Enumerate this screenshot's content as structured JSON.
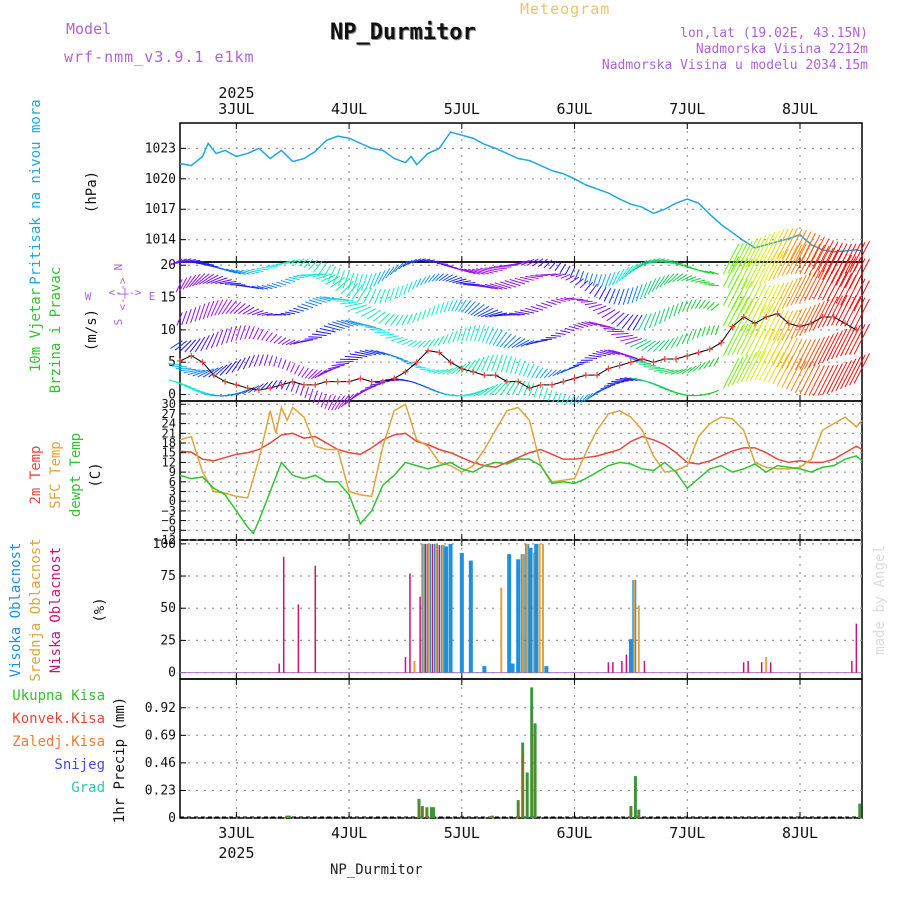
{
  "header": {
    "model_label": "Model",
    "model_name": "wrf-nmm_v3.9.1 e1km",
    "title": "NP_Durmitor",
    "meteogram_label": "Meteogram",
    "lonlat": "lon,lat (19.02E, 43.15N)",
    "altitude": "Nadmorska Visina 2212m",
    "model_altitude": "Nadmorska Visina u modelu 2034.15m"
  },
  "footer_label": "NP_Durmitor",
  "watermark": "made by Angel",
  "colors": {
    "pressure": "#1ea7e0",
    "t2m": "#e8463c",
    "sfc": "#e0a43a",
    "dew": "#2ec42e",
    "wind_obs": "#e8463c",
    "high_cloud": "#1f8fe0",
    "mid_cloud": "#e0a43a",
    "low_cloud": "#c8147a",
    "precip": "#3a9a3a",
    "precip_conv": "#8b6a1e",
    "label_purple": "#b062d8"
  },
  "chart_data": [
    {
      "type": "line",
      "name": "pressure",
      "title_lines": [
        "Pritisak na nivou mora",
        "(hPa)"
      ],
      "xlim": [
        2.5,
        8.55
      ],
      "ylim": [
        1011.8,
        1025.5
      ],
      "yticks": [
        1014,
        1017,
        1020,
        1023
      ],
      "year_label": "2025",
      "xtick_labels": [
        "3JUL",
        "4JUL",
        "5JUL",
        "6JUL",
        "7JUL",
        "8JUL"
      ],
      "xtick_values": [
        3,
        4,
        5,
        6,
        7,
        8
      ],
      "series": [
        {
          "color_key": "pressure",
          "x": [
            2.5,
            2.6,
            2.7,
            2.75,
            2.82,
            2.9,
            3.0,
            3.1,
            3.2,
            3.3,
            3.4,
            3.5,
            3.6,
            3.7,
            3.8,
            3.9,
            4.0,
            4.1,
            4.2,
            4.3,
            4.4,
            4.5,
            4.55,
            4.6,
            4.7,
            4.8,
            4.9,
            5.0,
            5.1,
            5.2,
            5.3,
            5.4,
            5.5,
            5.6,
            5.7,
            5.8,
            5.9,
            6.0,
            6.1,
            6.2,
            6.3,
            6.4,
            6.5,
            6.6,
            6.7,
            6.8,
            6.9,
            7.0,
            7.1,
            7.2,
            7.3,
            7.4,
            7.5,
            7.6,
            7.7,
            7.8,
            7.9,
            8.0,
            8.1,
            8.2,
            8.3,
            8.4,
            8.5,
            8.55
          ],
          "y": [
            1021.5,
            1021.3,
            1022.2,
            1023.5,
            1022.5,
            1022.8,
            1022.2,
            1022.5,
            1023.0,
            1022.0,
            1022.8,
            1021.7,
            1022.0,
            1022.7,
            1023.8,
            1024.2,
            1024.0,
            1023.5,
            1023.0,
            1022.8,
            1022.0,
            1021.6,
            1022.2,
            1021.4,
            1022.5,
            1023.0,
            1024.6,
            1024.3,
            1024.0,
            1023.4,
            1023.0,
            1022.5,
            1022.0,
            1021.8,
            1021.3,
            1020.8,
            1020.5,
            1020.0,
            1019.4,
            1019.0,
            1018.6,
            1018.0,
            1017.5,
            1017.2,
            1016.6,
            1017.0,
            1017.6,
            1018.0,
            1017.6,
            1016.5,
            1015.5,
            1014.7,
            1013.9,
            1013.2,
            1013.5,
            1013.8,
            1014.1,
            1014.5,
            1013.5,
            1013.0,
            1012.8,
            1012.9,
            1013.0,
            1012.9
          ]
        }
      ]
    },
    {
      "type": "scatter",
      "name": "wind",
      "title_lines": [
        "10m Vjetar",
        "Brzina i Pravac",
        "(m/s)"
      ],
      "ylim": [
        -1,
        20.5
      ],
      "yticks": [
        0,
        5,
        10,
        15,
        20
      ],
      "compass": {
        "w": "W",
        "e": "E",
        "n": "N",
        "s": "S",
        "arrow": "<-|->"
      },
      "speed_series": {
        "color_key": "wind_obs",
        "x": [
          2.5,
          2.6,
          2.7,
          2.8,
          2.9,
          3.0,
          3.1,
          3.2,
          3.3,
          3.4,
          3.5,
          3.6,
          3.7,
          3.8,
          3.9,
          4.0,
          4.1,
          4.2,
          4.3,
          4.4,
          4.5,
          4.6,
          4.7,
          4.8,
          4.9,
          5.0,
          5.1,
          5.2,
          5.3,
          5.4,
          5.5,
          5.6,
          5.7,
          5.8,
          5.9,
          6.0,
          6.1,
          6.2,
          6.3,
          6.4,
          6.5,
          6.6,
          6.7,
          6.8,
          6.9,
          7.0,
          7.1,
          7.2,
          7.3,
          7.4,
          7.5,
          7.6,
          7.7,
          7.8,
          7.9,
          8.0,
          8.1,
          8.2,
          8.3,
          8.4,
          8.5
        ],
        "y": [
          5.2,
          6.0,
          5.0,
          3.0,
          2.0,
          1.5,
          1.0,
          0.7,
          1.0,
          1.5,
          2.0,
          1.5,
          1.5,
          2.0,
          2.0,
          2.0,
          2.5,
          2.0,
          2.0,
          2.5,
          3.5,
          5.0,
          6.8,
          6.5,
          5.0,
          4.0,
          3.5,
          3.0,
          3.0,
          2.0,
          2.0,
          1.0,
          1.5,
          1.5,
          2.0,
          2.5,
          3.0,
          3.0,
          4.0,
          4.5,
          5.0,
          5.5,
          5.0,
          5.5,
          5.5,
          6.0,
          6.5,
          7.0,
          8.0,
          10.5,
          12.0,
          11.0,
          12.0,
          12.5,
          11.0,
          10.5,
          11.0,
          12.0,
          12.0,
          11.0,
          10.0
        ]
      }
    },
    {
      "type": "line",
      "name": "temperature",
      "title_lines": [
        "2m Temp",
        "SFC Temp",
        "dewpt Temp",
        "(C)"
      ],
      "ylim": [
        -12,
        31
      ],
      "yticks": [
        -12,
        -9,
        -6,
        -3,
        0,
        3,
        6,
        9,
        12,
        15,
        18,
        21,
        24,
        27,
        30
      ],
      "series": [
        {
          "name": "2m Temp",
          "color_key": "t2m",
          "x": [
            2.5,
            2.6,
            2.7,
            2.8,
            2.9,
            3.0,
            3.1,
            3.2,
            3.3,
            3.4,
            3.5,
            3.6,
            3.7,
            3.8,
            3.9,
            4.0,
            4.1,
            4.2,
            4.3,
            4.4,
            4.5,
            4.6,
            4.7,
            4.8,
            4.9,
            5.0,
            5.1,
            5.2,
            5.3,
            5.4,
            5.5,
            5.6,
            5.7,
            5.8,
            5.9,
            6.0,
            6.1,
            6.2,
            6.3,
            6.4,
            6.5,
            6.6,
            6.7,
            6.8,
            6.9,
            7.0,
            7.1,
            7.2,
            7.3,
            7.4,
            7.5,
            7.6,
            7.7,
            7.8,
            7.9,
            8.0,
            8.1,
            8.2,
            8.3,
            8.4,
            8.5,
            8.55
          ],
          "y": [
            15.5,
            15.2,
            13.0,
            12.5,
            13.5,
            14.5,
            15.0,
            16.0,
            18.0,
            20.5,
            21.0,
            19.5,
            20.0,
            18.0,
            16.0,
            15.0,
            14.5,
            16.5,
            19.0,
            20.5,
            21.0,
            18.5,
            17.5,
            16.0,
            15.0,
            13.5,
            12.0,
            11.0,
            10.5,
            12.0,
            13.5,
            15.0,
            16.0,
            14.5,
            13.0,
            13.0,
            13.5,
            14.0,
            15.0,
            16.0,
            18.5,
            20.0,
            19.0,
            17.5,
            15.0,
            12.0,
            11.5,
            12.5,
            14.0,
            15.5,
            16.5,
            16.5,
            15.0,
            13.0,
            12.0,
            12.5,
            12.0,
            12.0,
            13.0,
            15.0,
            17.0,
            16.0
          ]
        },
        {
          "name": "SFC Temp",
          "color_key": "sfc",
          "x": [
            2.5,
            2.6,
            2.7,
            2.8,
            2.9,
            3.0,
            3.1,
            3.2,
            3.3,
            3.35,
            3.4,
            3.45,
            3.5,
            3.6,
            3.7,
            3.8,
            3.9,
            4.0,
            4.1,
            4.2,
            4.3,
            4.4,
            4.5,
            4.6,
            4.7,
            4.8,
            4.9,
            5.0,
            5.1,
            5.2,
            5.3,
            5.4,
            5.5,
            5.6,
            5.7,
            5.8,
            5.9,
            6.0,
            6.1,
            6.2,
            6.3,
            6.4,
            6.5,
            6.6,
            6.7,
            6.8,
            6.9,
            7.0,
            7.1,
            7.2,
            7.3,
            7.4,
            7.5,
            7.6,
            7.7,
            7.8,
            7.9,
            8.0,
            8.1,
            8.2,
            8.3,
            8.4,
            8.5,
            8.55
          ],
          "y": [
            19.0,
            20.0,
            9.0,
            3.0,
            2.5,
            1.5,
            1.0,
            13.0,
            28.0,
            21.0,
            29.0,
            25.0,
            29.0,
            26.0,
            17.0,
            16.0,
            16.0,
            3.0,
            2.0,
            1.5,
            17.0,
            28.0,
            30.0,
            19.0,
            17.0,
            12.0,
            11.0,
            9.0,
            11.0,
            16.0,
            22.0,
            28.0,
            29.0,
            25.0,
            11.0,
            6.0,
            6.5,
            7.0,
            15.0,
            22.0,
            27.0,
            28.0,
            26.0,
            22.0,
            14.0,
            9.0,
            9.5,
            11.0,
            20.0,
            24.0,
            26.0,
            25.5,
            22.0,
            12.0,
            10.5,
            10.0,
            10.0,
            10.5,
            13.0,
            22.0,
            24.0,
            26.0,
            23.0,
            25.0
          ]
        },
        {
          "name": "dewpt Temp",
          "color_key": "dew",
          "x": [
            2.5,
            2.6,
            2.7,
            2.8,
            2.9,
            3.0,
            3.1,
            3.15,
            3.2,
            3.3,
            3.4,
            3.5,
            3.6,
            3.7,
            3.8,
            3.9,
            4.0,
            4.1,
            4.2,
            4.3,
            4.4,
            4.5,
            4.6,
            4.7,
            4.8,
            4.9,
            5.0,
            5.1,
            5.2,
            5.3,
            5.4,
            5.5,
            5.6,
            5.7,
            5.8,
            5.9,
            6.0,
            6.1,
            6.2,
            6.3,
            6.4,
            6.5,
            6.6,
            6.7,
            6.8,
            6.9,
            7.0,
            7.1,
            7.2,
            7.3,
            7.4,
            7.5,
            7.6,
            7.7,
            7.8,
            7.9,
            8.0,
            8.1,
            8.2,
            8.3,
            8.4,
            8.5,
            8.55
          ],
          "y": [
            8.0,
            7.0,
            7.5,
            4.0,
            2.0,
            -3.0,
            -8.0,
            -10.0,
            -6.0,
            3.0,
            12.0,
            8.0,
            7.0,
            8.0,
            6.0,
            6.0,
            2.0,
            -7.0,
            -3.0,
            5.0,
            8.0,
            12.0,
            11.0,
            10.0,
            11.0,
            12.0,
            10.0,
            9.0,
            11.0,
            12.0,
            11.5,
            13.0,
            13.0,
            11.0,
            5.5,
            6.0,
            5.5,
            7.0,
            9.0,
            11.0,
            12.0,
            11.5,
            10.0,
            9.5,
            12.0,
            9.0,
            4.0,
            7.0,
            10.0,
            11.0,
            9.0,
            10.0,
            11.5,
            9.0,
            11.0,
            10.5,
            10.0,
            9.0,
            10.5,
            11.0,
            13.0,
            14.0,
            12.5
          ]
        }
      ]
    },
    {
      "type": "bar",
      "name": "cloud",
      "title_lines": [
        "Visoka Oblacnost",
        "Srednja Oblacnost",
        "Niska Oblacnost",
        "(%)"
      ],
      "ylim": [
        -5,
        103
      ],
      "yticks": [
        0,
        25,
        50,
        75,
        100
      ],
      "bars": [
        {
          "x": 3.42,
          "low": 90
        },
        {
          "x": 3.55,
          "low": 53
        },
        {
          "x": 3.7,
          "low": 83
        },
        {
          "x": 3.38,
          "low": 7
        },
        {
          "x": 4.5,
          "low": 12
        },
        {
          "x": 4.54,
          "low": 77
        },
        {
          "x": 4.58,
          "mid": 9
        },
        {
          "x": 4.63,
          "low": 59
        },
        {
          "x": 4.66,
          "mid": 100,
          "high": 100
        },
        {
          "x": 4.68,
          "low": 100
        },
        {
          "x": 4.71,
          "mid": 100,
          "high": 100
        },
        {
          "x": 4.74,
          "low": 100
        },
        {
          "x": 4.77,
          "mid": 100,
          "high": 100
        },
        {
          "x": 4.8,
          "low": 99
        },
        {
          "x": 4.83,
          "mid": 99,
          "high": 99
        },
        {
          "x": 4.86,
          "high": 98
        },
        {
          "x": 4.9,
          "high": 100
        },
        {
          "x": 5.0,
          "high": 93
        },
        {
          "x": 5.08,
          "high": 87
        },
        {
          "x": 5.2,
          "high": 5
        },
        {
          "x": 5.35,
          "mid": 66
        },
        {
          "x": 5.42,
          "high": 92
        },
        {
          "x": 5.45,
          "high": 7
        },
        {
          "x": 5.5,
          "high": 88
        },
        {
          "x": 5.54,
          "mid": 92,
          "high": 92
        },
        {
          "x": 5.58,
          "mid": 100,
          "high": 100
        },
        {
          "x": 5.61,
          "high": 97
        },
        {
          "x": 5.64,
          "mid": 93
        },
        {
          "x": 5.66,
          "high": 100
        },
        {
          "x": 5.69,
          "mid": 100
        },
        {
          "x": 5.72,
          "mid": 100
        },
        {
          "x": 5.75,
          "high": 5
        },
        {
          "x": 6.3,
          "low": 8
        },
        {
          "x": 6.34,
          "low": 8
        },
        {
          "x": 6.42,
          "low": 9
        },
        {
          "x": 6.46,
          "low": 14
        },
        {
          "x": 6.5,
          "high": 26
        },
        {
          "x": 6.53,
          "mid": 72,
          "high": 72
        },
        {
          "x": 6.57,
          "mid": 52
        },
        {
          "x": 6.62,
          "low": 9
        },
        {
          "x": 7.5,
          "low": 8
        },
        {
          "x": 7.54,
          "low": 9
        },
        {
          "x": 7.66,
          "low": 8
        },
        {
          "x": 7.7,
          "mid": 12
        },
        {
          "x": 7.74,
          "low": 8
        },
        {
          "x": 8.46,
          "low": 9
        },
        {
          "x": 8.5,
          "low": 38
        }
      ]
    },
    {
      "type": "bar",
      "name": "precip",
      "title_lines": [
        "1hr Precip (mm)"
      ],
      "legend": [
        "Ukupna Kisa",
        "Konvek.Kisa",
        "Zaledj.Kisa",
        "Snijeg",
        "Grad"
      ],
      "ylim": [
        0,
        1.16
      ],
      "yticks": [
        0,
        0.23,
        0.46,
        0.69,
        0.92
      ],
      "bars": [
        {
          "x": 3.45,
          "v": 0.02
        },
        {
          "x": 3.47,
          "v": 0.02
        },
        {
          "x": 4.62,
          "v": 0.16
        },
        {
          "x": 4.65,
          "v": 0.1
        },
        {
          "x": 4.69,
          "v": 0.09
        },
        {
          "x": 4.73,
          "v": 0.09
        },
        {
          "x": 4.75,
          "v": 0.09
        },
        {
          "x": 5.25,
          "v": 0.01
        },
        {
          "x": 5.27,
          "v": 0.02
        },
        {
          "x": 5.5,
          "v": 0.15
        },
        {
          "x": 5.54,
          "v": 0.63
        },
        {
          "x": 5.58,
          "v": 0.38
        },
        {
          "x": 5.62,
          "v": 1.09
        },
        {
          "x": 5.65,
          "v": 0.79
        },
        {
          "x": 6.5,
          "v": 0.1
        },
        {
          "x": 6.54,
          "v": 0.35
        },
        {
          "x": 6.57,
          "v": 0.07
        },
        {
          "x": 8.53,
          "v": 0.12
        }
      ]
    }
  ]
}
